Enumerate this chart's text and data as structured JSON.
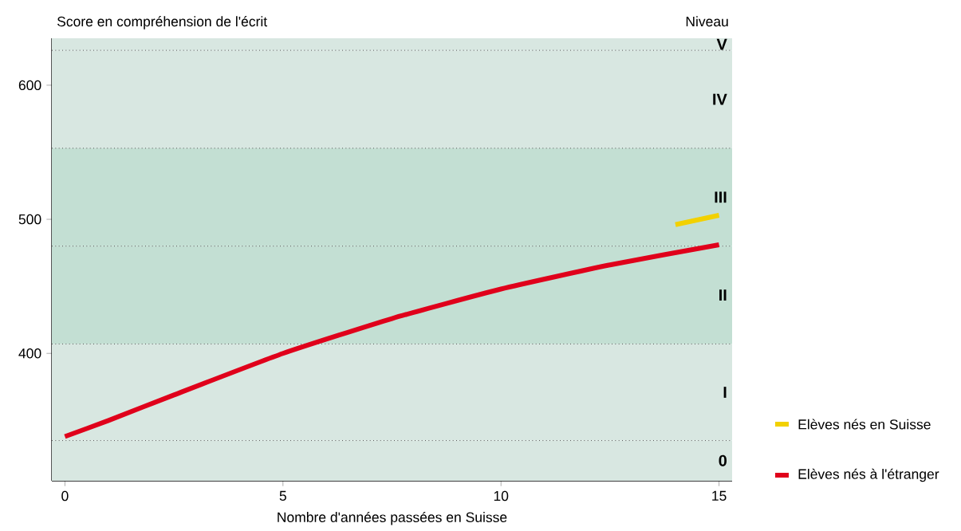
{
  "chart_data": {
    "type": "line",
    "ylabel": "Score en compréhension de l'écrit",
    "xlabel": "Nombre d'années passées en Suisse",
    "annotations": [
      "Niveau"
    ],
    "xlim": [
      -0.3,
      15.3
    ],
    "ylim": [
      305,
      635
    ],
    "xticks": [
      0,
      5,
      10,
      15
    ],
    "yticks": [
      400,
      500,
      600
    ],
    "grid": false,
    "legend": "bottom right",
    "line_style": "solid",
    "marker": "none",
    "series": [
      {
        "name": "Elèves nés en Suisse",
        "color": "#f2d100",
        "x": [
          14,
          15
        ],
        "values": [
          496,
          503
        ]
      },
      {
        "name": "Elèves nés à l'étranger",
        "color": "#e0001b",
        "x": [
          0,
          1,
          2.5,
          5,
          7.5,
          10,
          12.5,
          15
        ],
        "values": [
          338,
          350,
          369,
          400,
          426,
          448,
          466,
          481
        ]
      }
    ],
    "bands": [
      {
        "axis": "y",
        "from": 305,
        "to": 335,
        "label": "0",
        "color": "#d8e7e1"
      },
      {
        "axis": "y",
        "from": 335,
        "to": 407,
        "label": "I",
        "color": "#d8e7e1"
      },
      {
        "axis": "y",
        "from": 407,
        "to": 480,
        "label": "II",
        "color": "#c3dfd3"
      },
      {
        "axis": "y",
        "from": 480,
        "to": 553,
        "label": "III",
        "color": "#c3dfd3"
      },
      {
        "axis": "y",
        "from": 553,
        "to": 626,
        "label": "IV",
        "color": "#d8e7e1"
      },
      {
        "axis": "y",
        "from": 626,
        "to": 635,
        "label": "V",
        "color": "#d8e7e1"
      }
    ],
    "ref_lines": [
      {
        "axis": "y",
        "value": 335,
        "line_style": "dotted",
        "color": "#555555"
      },
      {
        "axis": "y",
        "value": 407,
        "line_style": "dotted",
        "color": "#555555"
      },
      {
        "axis": "y",
        "value": 480,
        "line_style": "dotted",
        "color": "#555555"
      },
      {
        "axis": "y",
        "value": 553,
        "line_style": "dotted",
        "color": "#555555"
      },
      {
        "axis": "y",
        "value": 626,
        "line_style": "dotted",
        "color": "#555555"
      }
    ]
  }
}
